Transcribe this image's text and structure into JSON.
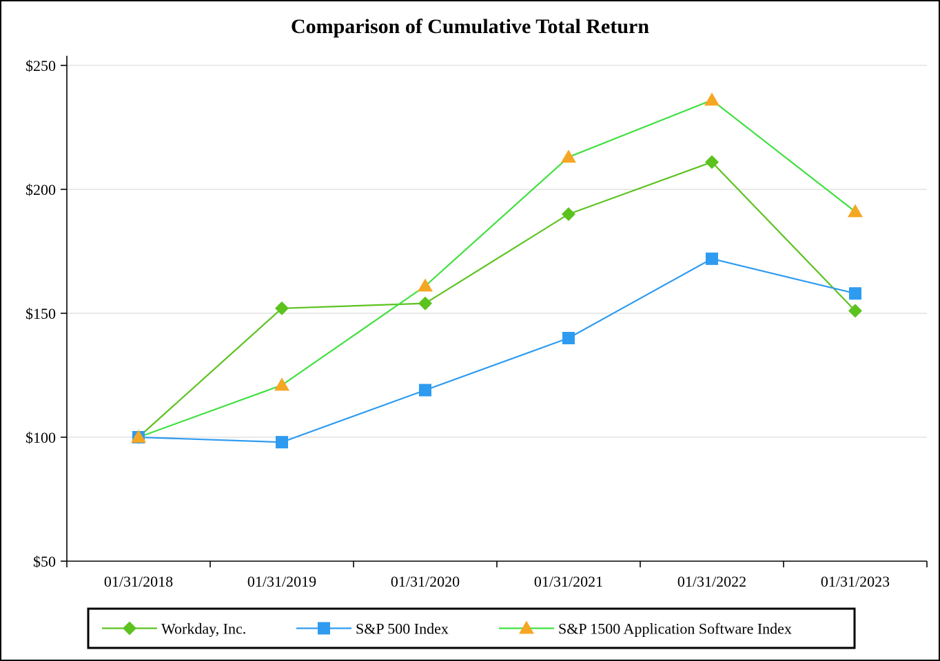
{
  "title": "Comparison of Cumulative Total Return",
  "chart_data": {
    "type": "line",
    "x": [
      "01/31/2018",
      "01/31/2019",
      "01/31/2020",
      "01/31/2021",
      "01/31/2022",
      "01/31/2023"
    ],
    "series": [
      {
        "name": "Workday, Inc.",
        "marker": "diamond",
        "line_color": "#5BC21E",
        "marker_color": "#5BC21E",
        "values": [
          100,
          152,
          154,
          190,
          211,
          151
        ]
      },
      {
        "name": "S&P 500 Index",
        "marker": "square",
        "line_color": "#2E9BF0",
        "marker_color": "#2E9BF0",
        "values": [
          100,
          98,
          119,
          140,
          172,
          158
        ]
      },
      {
        "name": "S&P 1500 Application Software Index",
        "marker": "triangle",
        "line_color": "#3FE03F",
        "marker_color": "#F5A623",
        "values": [
          100,
          121,
          161,
          213,
          236,
          191
        ]
      }
    ],
    "ylim": [
      50,
      250
    ],
    "y_ticks": [
      {
        "value": 50,
        "label": "$50"
      },
      {
        "value": 100,
        "label": "$100"
      },
      {
        "value": 150,
        "label": "$150"
      },
      {
        "value": 200,
        "label": "$200"
      },
      {
        "value": 250,
        "label": "$250"
      }
    ],
    "xlabel": "",
    "ylabel": "",
    "grid": true,
    "grid_color": "#D3D3D3",
    "axis_color": "#000000",
    "legend_position": "bottom"
  }
}
